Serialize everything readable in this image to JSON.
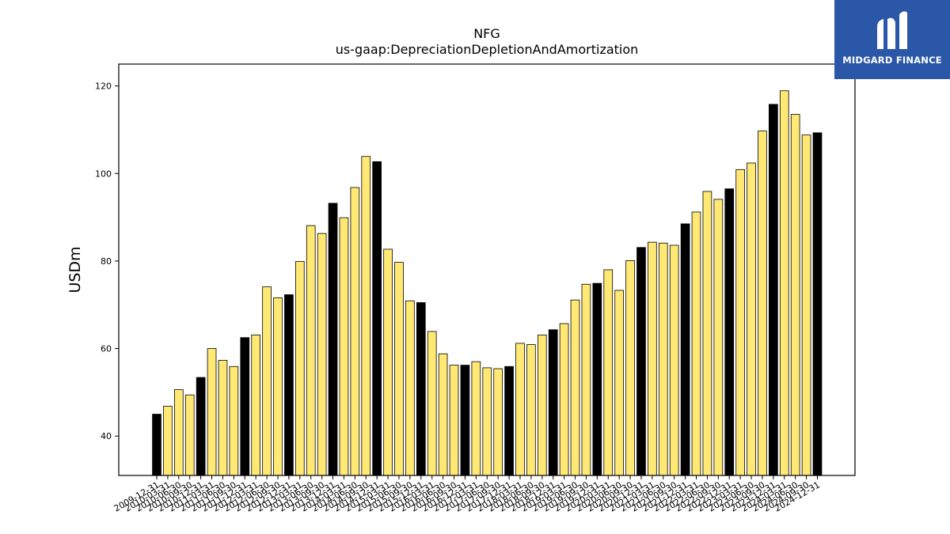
{
  "chart_data": {
    "type": "bar",
    "title": "NFG",
    "subtitle": "us-gaap:DepreciationDepletionAndAmortization",
    "ylabel": "USDm",
    "xlabel": "",
    "ylim": [
      31,
      125
    ],
    "yticks": [
      40,
      60,
      80,
      100,
      120
    ],
    "grid": false,
    "legend": "none",
    "colors": {
      "annual": "#000000",
      "quarterly": "#ffe873",
      "edge": "#000000"
    },
    "categories": [
      "2009-12-31",
      "2010-03-31",
      "2010-06-30",
      "2010-09-30",
      "2010-12-31",
      "2011-03-31",
      "2011-06-30",
      "2011-09-30",
      "2011-12-31",
      "2012-03-31",
      "2012-06-30",
      "2012-09-30",
      "2012-12-31",
      "2013-03-31",
      "2013-06-30",
      "2013-09-30",
      "2013-12-31",
      "2014-03-31",
      "2014-06-30",
      "2014-09-30",
      "2014-12-31",
      "2015-03-31",
      "2015-06-30",
      "2015-09-30",
      "2015-12-31",
      "2016-03-31",
      "2016-06-30",
      "2016-09-30",
      "2016-12-31",
      "2017-03-31",
      "2017-06-30",
      "2017-09-30",
      "2017-12-31",
      "2018-03-31",
      "2018-06-30",
      "2018-09-30",
      "2018-12-31",
      "2019-03-31",
      "2019-06-30",
      "2019-09-30",
      "2019-12-31",
      "2020-03-31",
      "2020-06-30",
      "2020-09-30",
      "2020-12-31",
      "2021-03-31",
      "2021-06-30",
      "2021-09-30",
      "2021-12-31",
      "2022-03-31",
      "2022-06-30",
      "2022-09-30",
      "2022-12-31",
      "2023-03-31",
      "2023-06-30",
      "2023-09-30",
      "2023-12-31",
      "2024-03-31",
      "2024-06-30",
      "2024-09-30",
      "2024-12-31"
    ],
    "values": [
      45.0,
      46.8,
      50.6,
      49.4,
      53.4,
      60.0,
      57.3,
      55.9,
      62.5,
      63.1,
      74.1,
      71.6,
      72.3,
      79.9,
      88.1,
      86.3,
      93.2,
      89.9,
      96.8,
      103.9,
      102.7,
      82.7,
      79.7,
      70.9,
      70.5,
      63.9,
      58.8,
      56.2,
      56.2,
      57.0,
      55.6,
      55.4,
      55.9,
      61.2,
      60.9,
      63.1,
      64.3,
      65.7,
      71.1,
      74.7,
      74.9,
      78.0,
      73.3,
      80.1,
      83.1,
      84.3,
      84.1,
      83.6,
      88.5,
      91.2,
      95.9,
      94.1,
      96.5,
      100.9,
      102.4,
      109.7,
      115.8,
      118.9,
      113.5,
      108.8,
      109.3
    ],
    "annual_flags": [
      1,
      0,
      0,
      0,
      1,
      0,
      0,
      0,
      1,
      0,
      0,
      0,
      1,
      0,
      0,
      0,
      1,
      0,
      0,
      0,
      1,
      0,
      0,
      0,
      1,
      0,
      0,
      0,
      1,
      0,
      0,
      0,
      1,
      0,
      0,
      0,
      1,
      0,
      0,
      0,
      1,
      0,
      0,
      0,
      1,
      0,
      0,
      0,
      1,
      0,
      0,
      0,
      1,
      0,
      0,
      0,
      1,
      0,
      0,
      0,
      1
    ]
  },
  "logo": {
    "text": "MIDGARD FINANCE",
    "icon": "midgard-logo-icon",
    "background": "#2b57a8"
  }
}
